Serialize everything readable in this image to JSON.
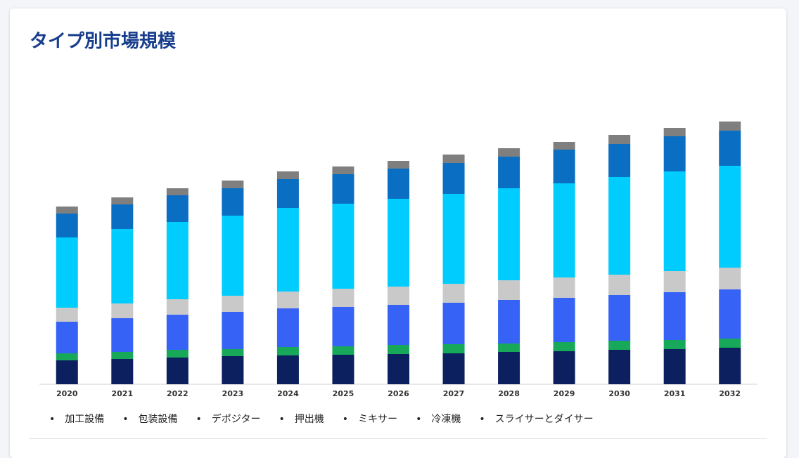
{
  "chart_data": {
    "type": "stacked_bar",
    "title": "タイプ別市場規模",
    "categories": [
      "2020",
      "2021",
      "2022",
      "2023",
      "2024",
      "2025",
      "2026",
      "2027",
      "2028",
      "2029",
      "2030",
      "2031",
      "2032"
    ],
    "ylim": [
      0,
      400
    ],
    "series": [
      {
        "name": "加工設備",
        "color": "#0c1f5e",
        "values": [
          34,
          36,
          38,
          40,
          41,
          42,
          43,
          44,
          46,
          47,
          49,
          50,
          52
        ]
      },
      {
        "name": "包装設備",
        "color": "#17a85a",
        "values": [
          10,
          10,
          11,
          10,
          12,
          12,
          13,
          13,
          12,
          13,
          13,
          13,
          13
        ]
      },
      {
        "name": "デポジター",
        "color": "#3663f6",
        "values": [
          45,
          48,
          50,
          53,
          55,
          56,
          57,
          59,
          62,
          63,
          65,
          68,
          70
        ]
      },
      {
        "name": "押出機",
        "color": "#c9c9c9",
        "values": [
          20,
          21,
          22,
          23,
          24,
          26,
          26,
          27,
          28,
          29,
          29,
          30,
          31
        ]
      },
      {
        "name": "ミキサー",
        "color": "#00cdfd",
        "values": [
          100,
          106,
          110,
          114,
          119,
          121,
          125,
          128,
          131,
          134,
          139,
          142,
          145
        ]
      },
      {
        "name": "冷凍機",
        "color": "#0a6ec2",
        "values": [
          34,
          35,
          38,
          39,
          41,
          42,
          43,
          44,
          45,
          48,
          47,
          50,
          50
        ]
      },
      {
        "name": "スライサーとダイサー",
        "color": "#7f7f7f",
        "values": [
          10,
          10,
          10,
          11,
          11,
          11,
          11,
          12,
          12,
          11,
          13,
          12,
          13
        ]
      }
    ]
  }
}
